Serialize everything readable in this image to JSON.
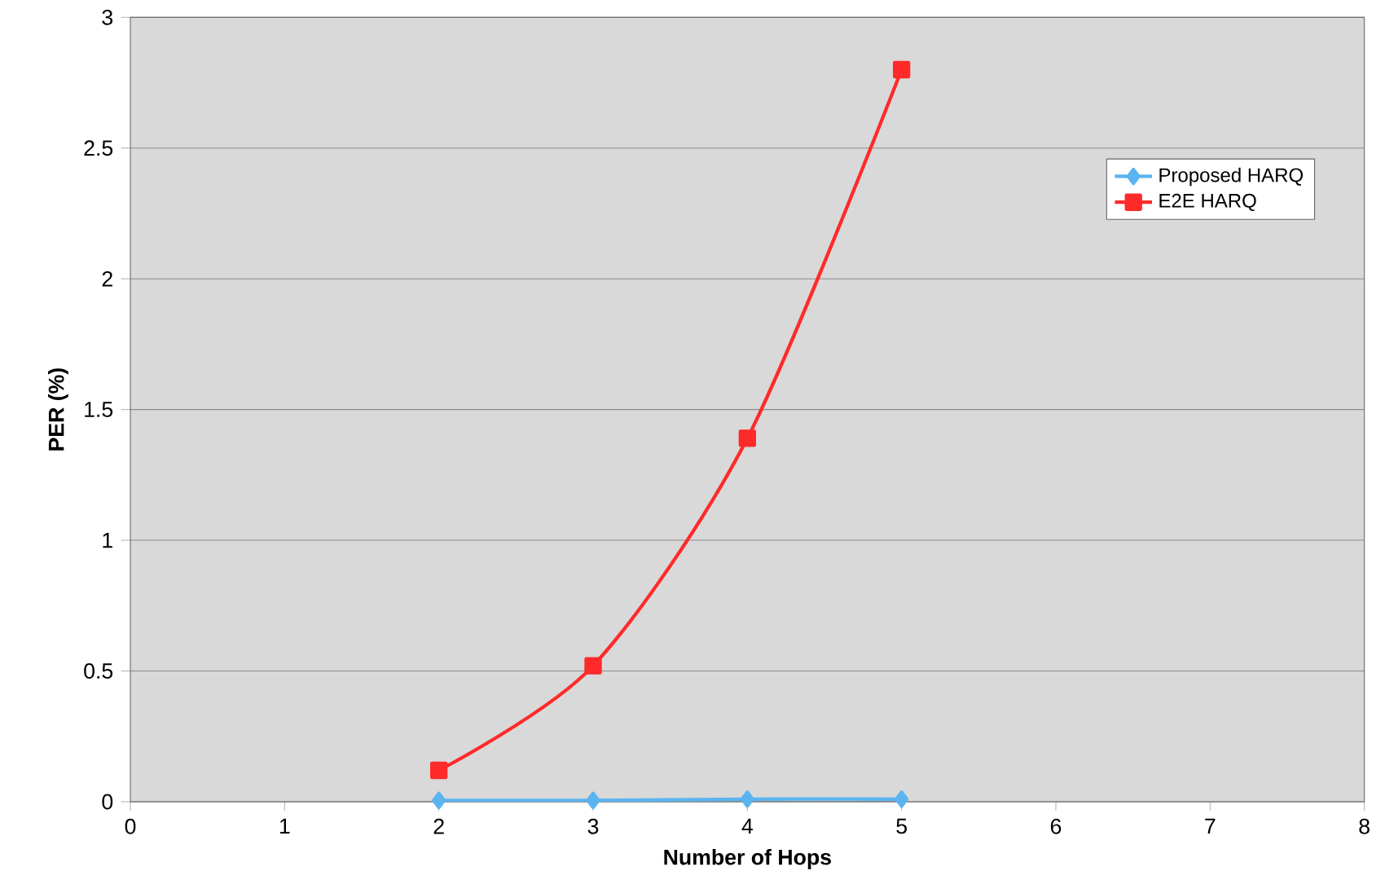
{
  "chart_data": {
    "type": "line",
    "xlabel": "Number of Hops",
    "ylabel": "PER (%)",
    "xlim": [
      0,
      8
    ],
    "xticks": [
      0,
      1,
      2,
      3,
      4,
      5,
      6,
      7,
      8
    ],
    "ylim": [
      0,
      3
    ],
    "yticks": [
      0,
      0.5,
      1,
      1.5,
      2,
      2.5,
      3
    ],
    "x": [
      2,
      3,
      4,
      5
    ],
    "grid": "y",
    "legend": "top right",
    "series": [
      {
        "name": "Proposed HARQ",
        "color": "#5ab4f0",
        "values": [
          0.005,
          0.005,
          0.01,
          0.01
        ],
        "marker": "diamond"
      },
      {
        "name": "E2E HARQ",
        "color": "#ff2a2a",
        "values": [
          0.12,
          0.52,
          1.39,
          2.8
        ],
        "marker": "square"
      }
    ]
  }
}
